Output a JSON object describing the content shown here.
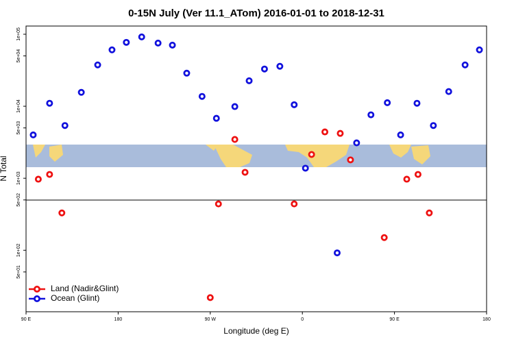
{
  "chart_data": {
    "type": "scatter",
    "title": "0-15N July (Ver 11.1_ATom)   2016-01-01 to 2018-12-31",
    "x_label": "Longitude (deg E)",
    "y_label": "N Total",
    "log_y": true,
    "legend": "lower left",
    "xlim": [
      90,
      540
    ],
    "xticks": [
      {
        "value": 90,
        "label": "90 E"
      },
      180,
      {
        "value": 270,
        "label": "90 W"
      },
      {
        "value": 360,
        "label": "0"
      },
      {
        "value": 450,
        "label": "90 E"
      },
      {
        "value": 540,
        "label": "180"
      }
    ],
    "ylim": [
      14,
      130000
    ],
    "yticks": [
      {
        "value": 50,
        "label": "5e+01"
      },
      {
        "value": 100,
        "label": "1e+02"
      },
      {
        "value": 500,
        "label": "5e+02"
      },
      {
        "value": 1000,
        "label": "1e+03"
      },
      {
        "value": 5000,
        "label": "5e+03"
      },
      {
        "value": 10000,
        "label": "1e+04"
      },
      {
        "value": 50000,
        "label": "5e+04"
      },
      {
        "value": 100000,
        "label": "1e+05"
      }
    ],
    "series": [
      {
        "name": "Land (Nadir&Glint)",
        "color": "#ee1111",
        "x": [
          102,
          113,
          125,
          270,
          278,
          294,
          304,
          352,
          369,
          382,
          397,
          407,
          440,
          462,
          473,
          484
        ],
        "values": [
          970,
          1130,
          330,
          22,
          440,
          3460,
          1210,
          440,
          2140,
          4400,
          4200,
          1800,
          150,
          970,
          1130,
          330
        ]
      },
      {
        "name": "Ocean (Glint)",
        "color": "#1111dd",
        "x": [
          97,
          113,
          128,
          144,
          160,
          174,
          188,
          203,
          219,
          233,
          247,
          262,
          276,
          294,
          308,
          323,
          338,
          352,
          363,
          394,
          413,
          427,
          443,
          456,
          472,
          488,
          503,
          519,
          533
        ],
        "values": [
          4000,
          11000,
          5400,
          15600,
          37500,
          60700,
          77100,
          91800,
          75400,
          70600,
          28800,
          13700,
          6800,
          9900,
          22600,
          32900,
          35900,
          10500,
          1380,
          92,
          3100,
          7600,
          11200,
          4000,
          11000,
          5400,
          16000,
          37500,
          60700
        ]
      }
    ]
  }
}
